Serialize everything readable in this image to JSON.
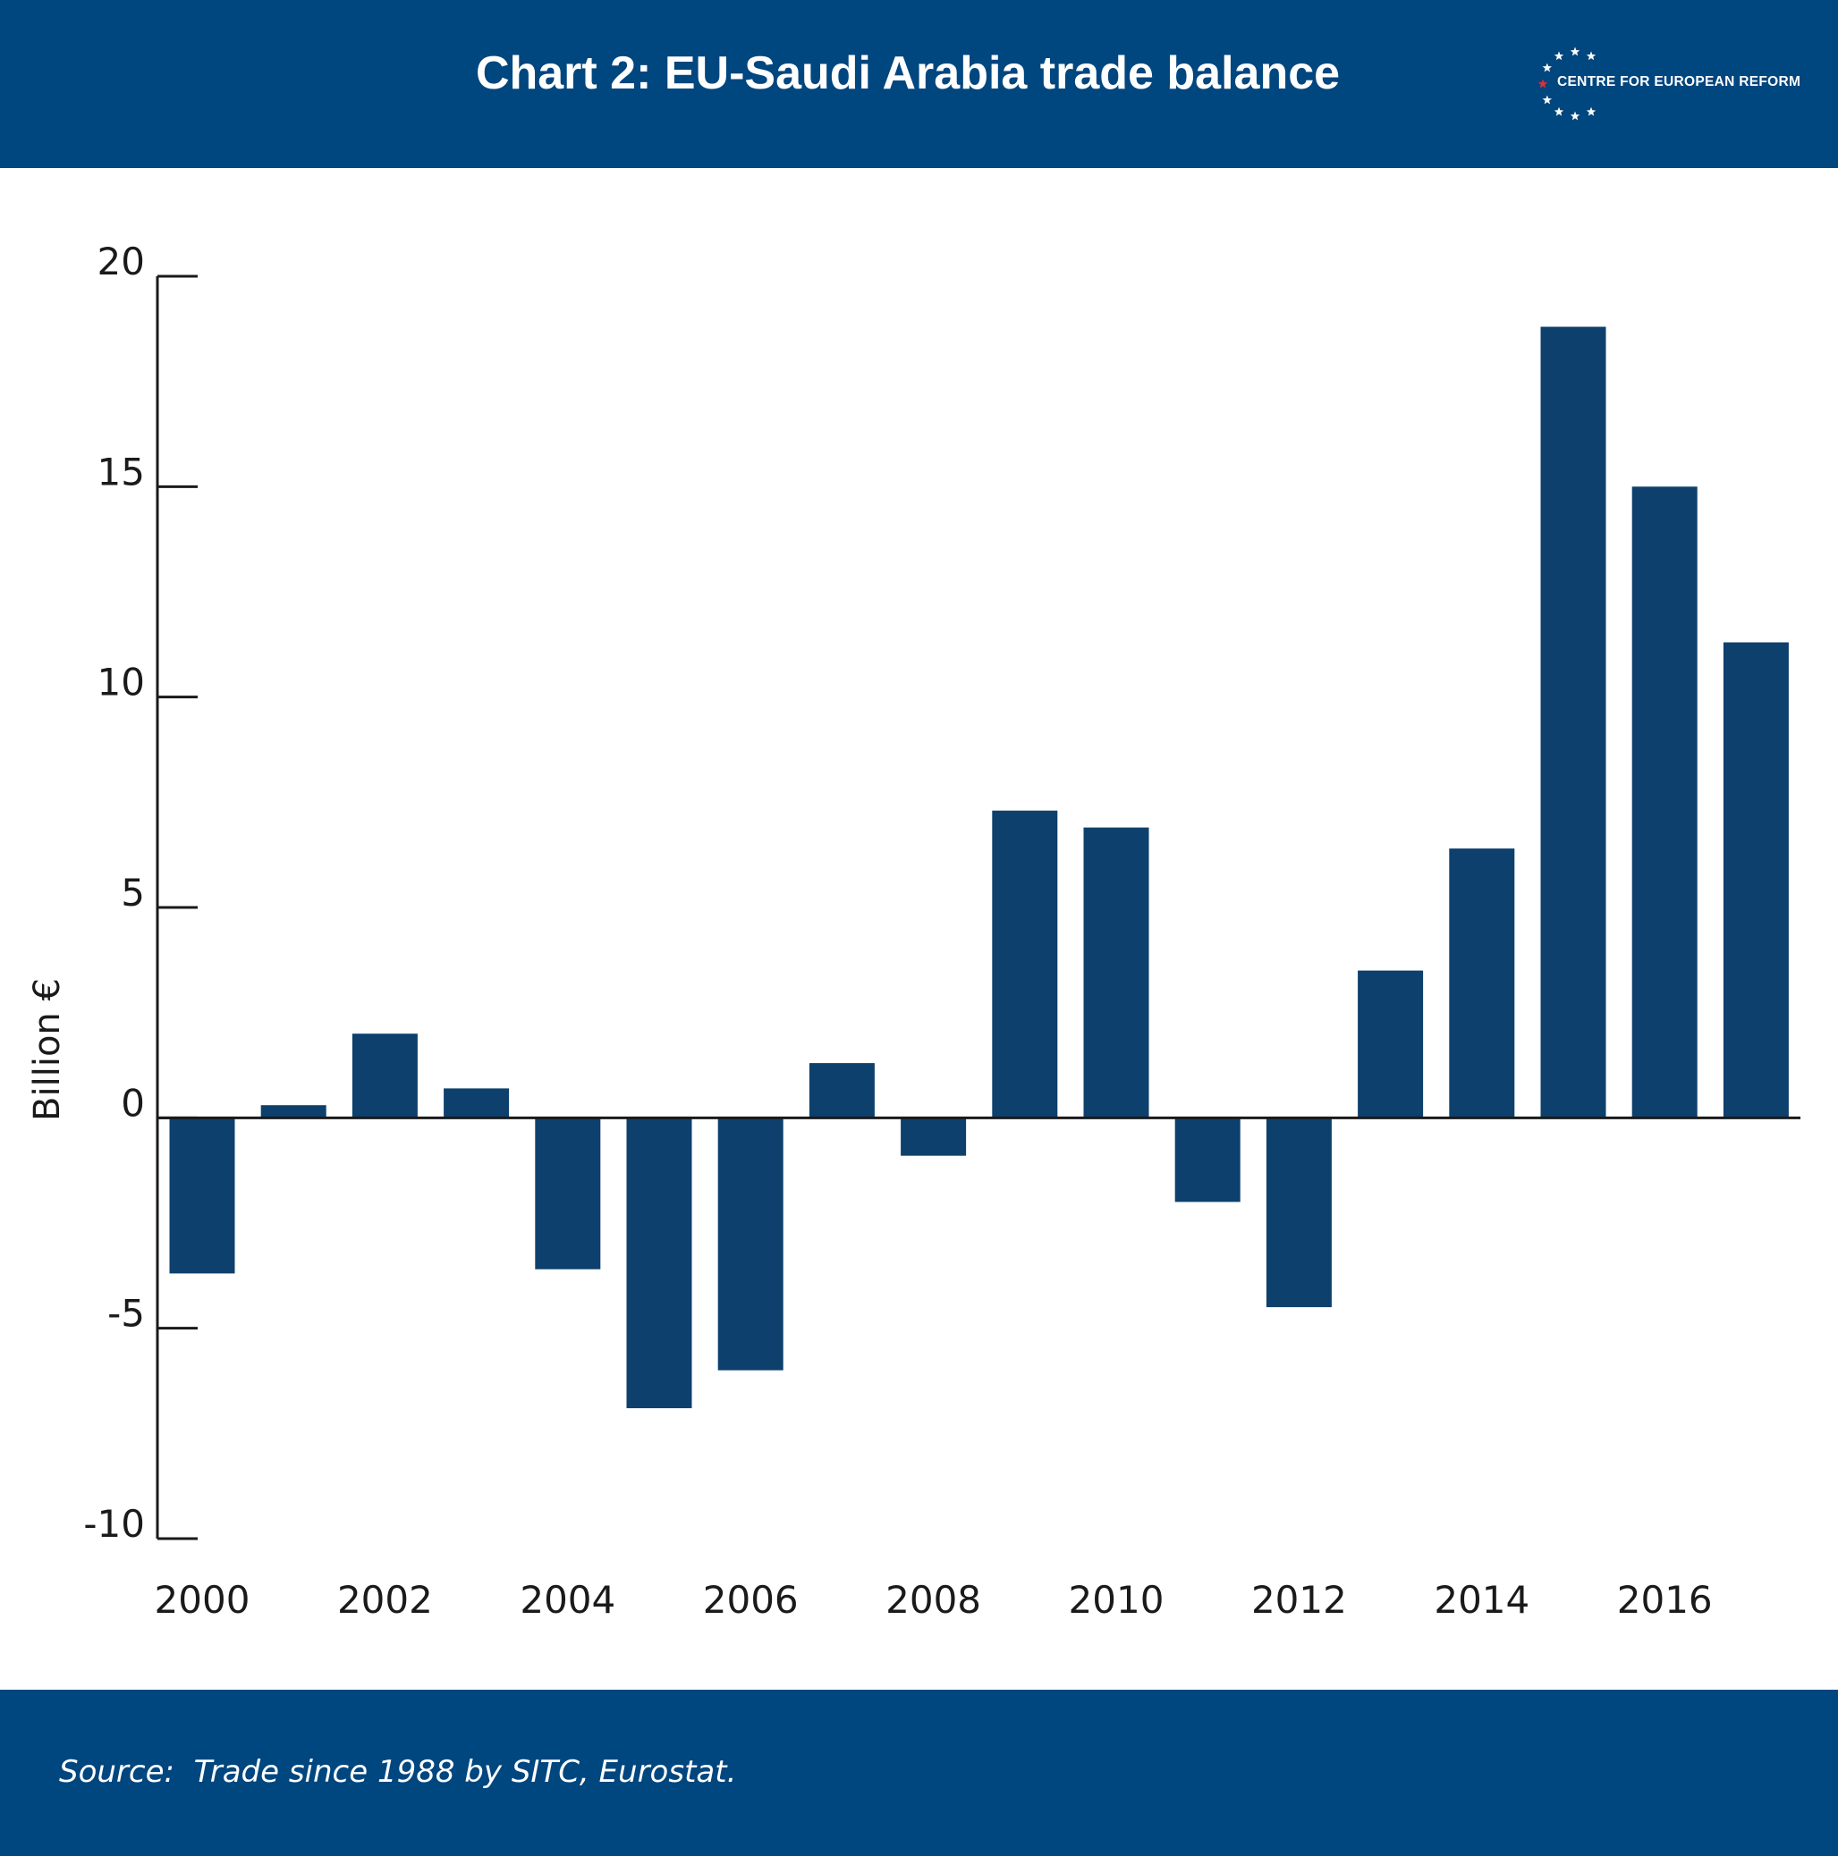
{
  "header": {
    "title": "Chart 2: EU-Saudi Arabia trade balance",
    "logo_text": "CENTRE FOR EUROPEAN REFORM"
  },
  "footer": {
    "source": "Source:  Trade since 1988 by SITC, Eurostat."
  },
  "colors": {
    "band": "#00467f",
    "bar": "#0d406c",
    "logo_star": "#ffffff",
    "logo_accent_star": "#e0303a"
  },
  "chart_data": {
    "type": "bar",
    "title": "Chart 2: EU-Saudi Arabia trade balance",
    "ylabel": "Billion €",
    "xlabel": "",
    "ylim": [
      -10,
      20
    ],
    "yticks": [
      -10,
      -5,
      0,
      5,
      10,
      15,
      20
    ],
    "ytick_labels": [
      "-10",
      "-5",
      "0",
      "5",
      "10",
      "15",
      "20"
    ],
    "xtick_labels": [
      "2000",
      "2002",
      "2004",
      "2006",
      "2008",
      "2010",
      "2012",
      "2014",
      "2016"
    ],
    "grid": false,
    "categories": [
      "2000",
      "2001",
      "2002",
      "2003",
      "2004",
      "2005",
      "2006",
      "2007",
      "2008",
      "2009",
      "2010",
      "2011",
      "2012",
      "2013",
      "2014",
      "2015",
      "2016",
      "2017"
    ],
    "values": [
      -3.7,
      0.3,
      2.0,
      0.7,
      -3.6,
      -6.9,
      -6.0,
      1.3,
      -0.9,
      7.3,
      6.9,
      -2.0,
      -4.5,
      3.5,
      6.4,
      18.8,
      15.0,
      11.3
    ]
  }
}
